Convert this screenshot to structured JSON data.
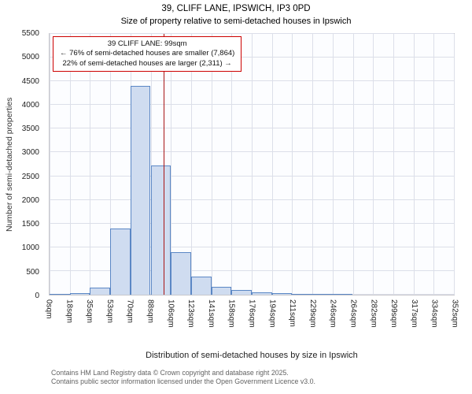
{
  "header": {
    "title": "39, CLIFF LANE, IPSWICH, IP3 0PD",
    "subtitle": "Size of property relative to semi-detached houses in Ipswich"
  },
  "annotation": {
    "line1": "39 CLIFF LANE: 99sqm",
    "line2": "← 76% of semi-detached houses are smaller (7,864)",
    "line3": "22% of semi-detached houses are larger (2,311) →"
  },
  "footer": {
    "line1": "Contains HM Land Registry data © Crown copyright and database right 2025.",
    "line2": "Contains public sector information licensed under the Open Government Licence v3.0."
  },
  "chart_data": {
    "type": "bar",
    "title": "39, CLIFF LANE, IPSWICH, IP3 0PD",
    "subtitle": "Size of property relative to semi-detached houses in Ipswich",
    "xlabel": "Distribution of semi-detached houses by size in Ipswich",
    "ylabel": "Number of semi-detached properties",
    "ylim": [
      0,
      5500
    ],
    "y_tick_step": 500,
    "x_max_sqm": 352,
    "grid": true,
    "categories": [
      "0sqm",
      "18sqm",
      "35sqm",
      "53sqm",
      "70sqm",
      "88sqm",
      "106sqm",
      "123sqm",
      "141sqm",
      "158sqm",
      "176sqm",
      "194sqm",
      "211sqm",
      "229sqm",
      "246sqm",
      "264sqm",
      "282sqm",
      "299sqm",
      "317sqm",
      "334sqm",
      "352sqm"
    ],
    "values": [
      10,
      30,
      150,
      1400,
      4400,
      2720,
      890,
      390,
      160,
      100,
      55,
      30,
      15,
      10,
      5,
      0,
      0,
      0,
      0,
      0
    ],
    "marker_sqm": 99,
    "marker_label": "39 CLIFF LANE: 99sqm",
    "pct_smaller": 76,
    "count_smaller": 7864,
    "pct_larger": 22,
    "count_larger": 2311,
    "bar_fill": "#cfdcf0",
    "bar_border": "#5b87c5",
    "marker_color": "#a81414",
    "grid_color": "#dcdfe9"
  }
}
